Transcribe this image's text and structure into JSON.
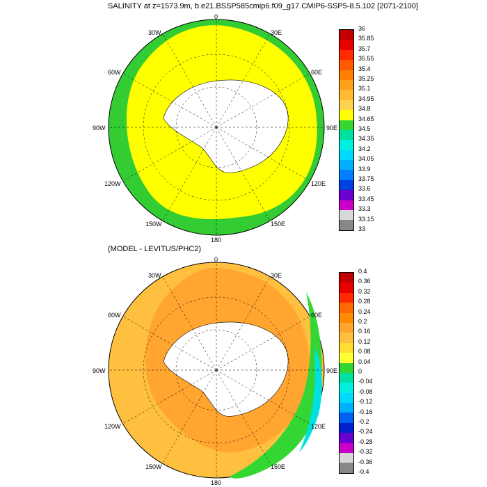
{
  "panel_top": {
    "title": "SALINITY at z=1573.9m, b.e21.BSSP585cmip6.f09_g17.CMIP6-SSP5-8.5.102 [2071-2100]",
    "lon_labels": [
      "0",
      "30E",
      "60E",
      "90E",
      "120E",
      "150E",
      "180",
      "150W",
      "120W",
      "90W",
      "60W",
      "30W"
    ],
    "colorbar": {
      "labels": [
        "36",
        "35.85",
        "35.7",
        "35.55",
        "35.4",
        "35.25",
        "35.1",
        "34.95",
        "34.8",
        "34.65",
        "34.5",
        "34.35",
        "34.2",
        "34.05",
        "33.9",
        "33.75",
        "33.6",
        "33.45",
        "33.3",
        "33.15",
        "33"
      ],
      "colors": [
        "#c00000",
        "#e80000",
        "#ff2a00",
        "#ff5a00",
        "#ff8000",
        "#ff9f1a",
        "#ffba33",
        "#ffd24d",
        "#ffff00",
        "#33d633",
        "#00e0a0",
        "#00f0e0",
        "#00d8ff",
        "#00b0ff",
        "#0080ff",
        "#0040e0",
        "#6a00d0",
        "#c800c8",
        "#d8d8d8",
        "#888888"
      ]
    }
  },
  "panel_bottom": {
    "title": "(MODEL - LEVITUS/PHC2)",
    "lon_labels": [
      "0",
      "30E",
      "60E",
      "90E",
      "120E",
      "150E",
      "180",
      "150W",
      "120W",
      "90W",
      "60W",
      "30W"
    ],
    "colorbar": {
      "labels": [
        "0.4",
        "0.36",
        "0.32",
        "0.28",
        "0.24",
        "0.2",
        "0.16",
        "0.12",
        "0.08",
        "0.04",
        "0",
        "-0.04",
        "-0.08",
        "-0.12",
        "-0.16",
        "-0.2",
        "-0.24",
        "-0.28",
        "-0.32",
        "-0.36",
        "-0.4"
      ],
      "colors": [
        "#c00000",
        "#e80000",
        "#ff2a00",
        "#ff6a00",
        "#ff8c00",
        "#ffa530",
        "#ffc040",
        "#ffdd33",
        "#ffff33",
        "#33d633",
        "#00e0a0",
        "#00f0e0",
        "#00d8ff",
        "#00b0ff",
        "#0060f0",
        "#0020d0",
        "#6a00d0",
        "#c800c8",
        "#d8d8d8",
        "#888888"
      ]
    }
  }
}
